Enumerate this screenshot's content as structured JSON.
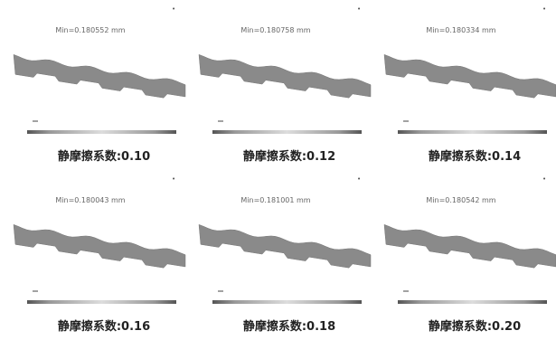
{
  "panels": [
    {
      "min_label": "Min=0.180552 mm",
      "caption": "静摩擦系数:0.10"
    },
    {
      "min_label": "Min=0.180758 mm",
      "caption": "静摩擦系数:0.12"
    },
    {
      "min_label": "Min=0.180334 mm",
      "caption": "静摩擦系数:0.14"
    },
    {
      "min_label": "Min=0.180043 mm",
      "caption": "静摩擦系数:0.16"
    },
    {
      "min_label": "Min=0.181001 mm",
      "caption": "静摩擦系数:0.18"
    },
    {
      "min_label": "Min=0.180542 mm",
      "caption": "静摩擦系数:0.20"
    }
  ]
}
